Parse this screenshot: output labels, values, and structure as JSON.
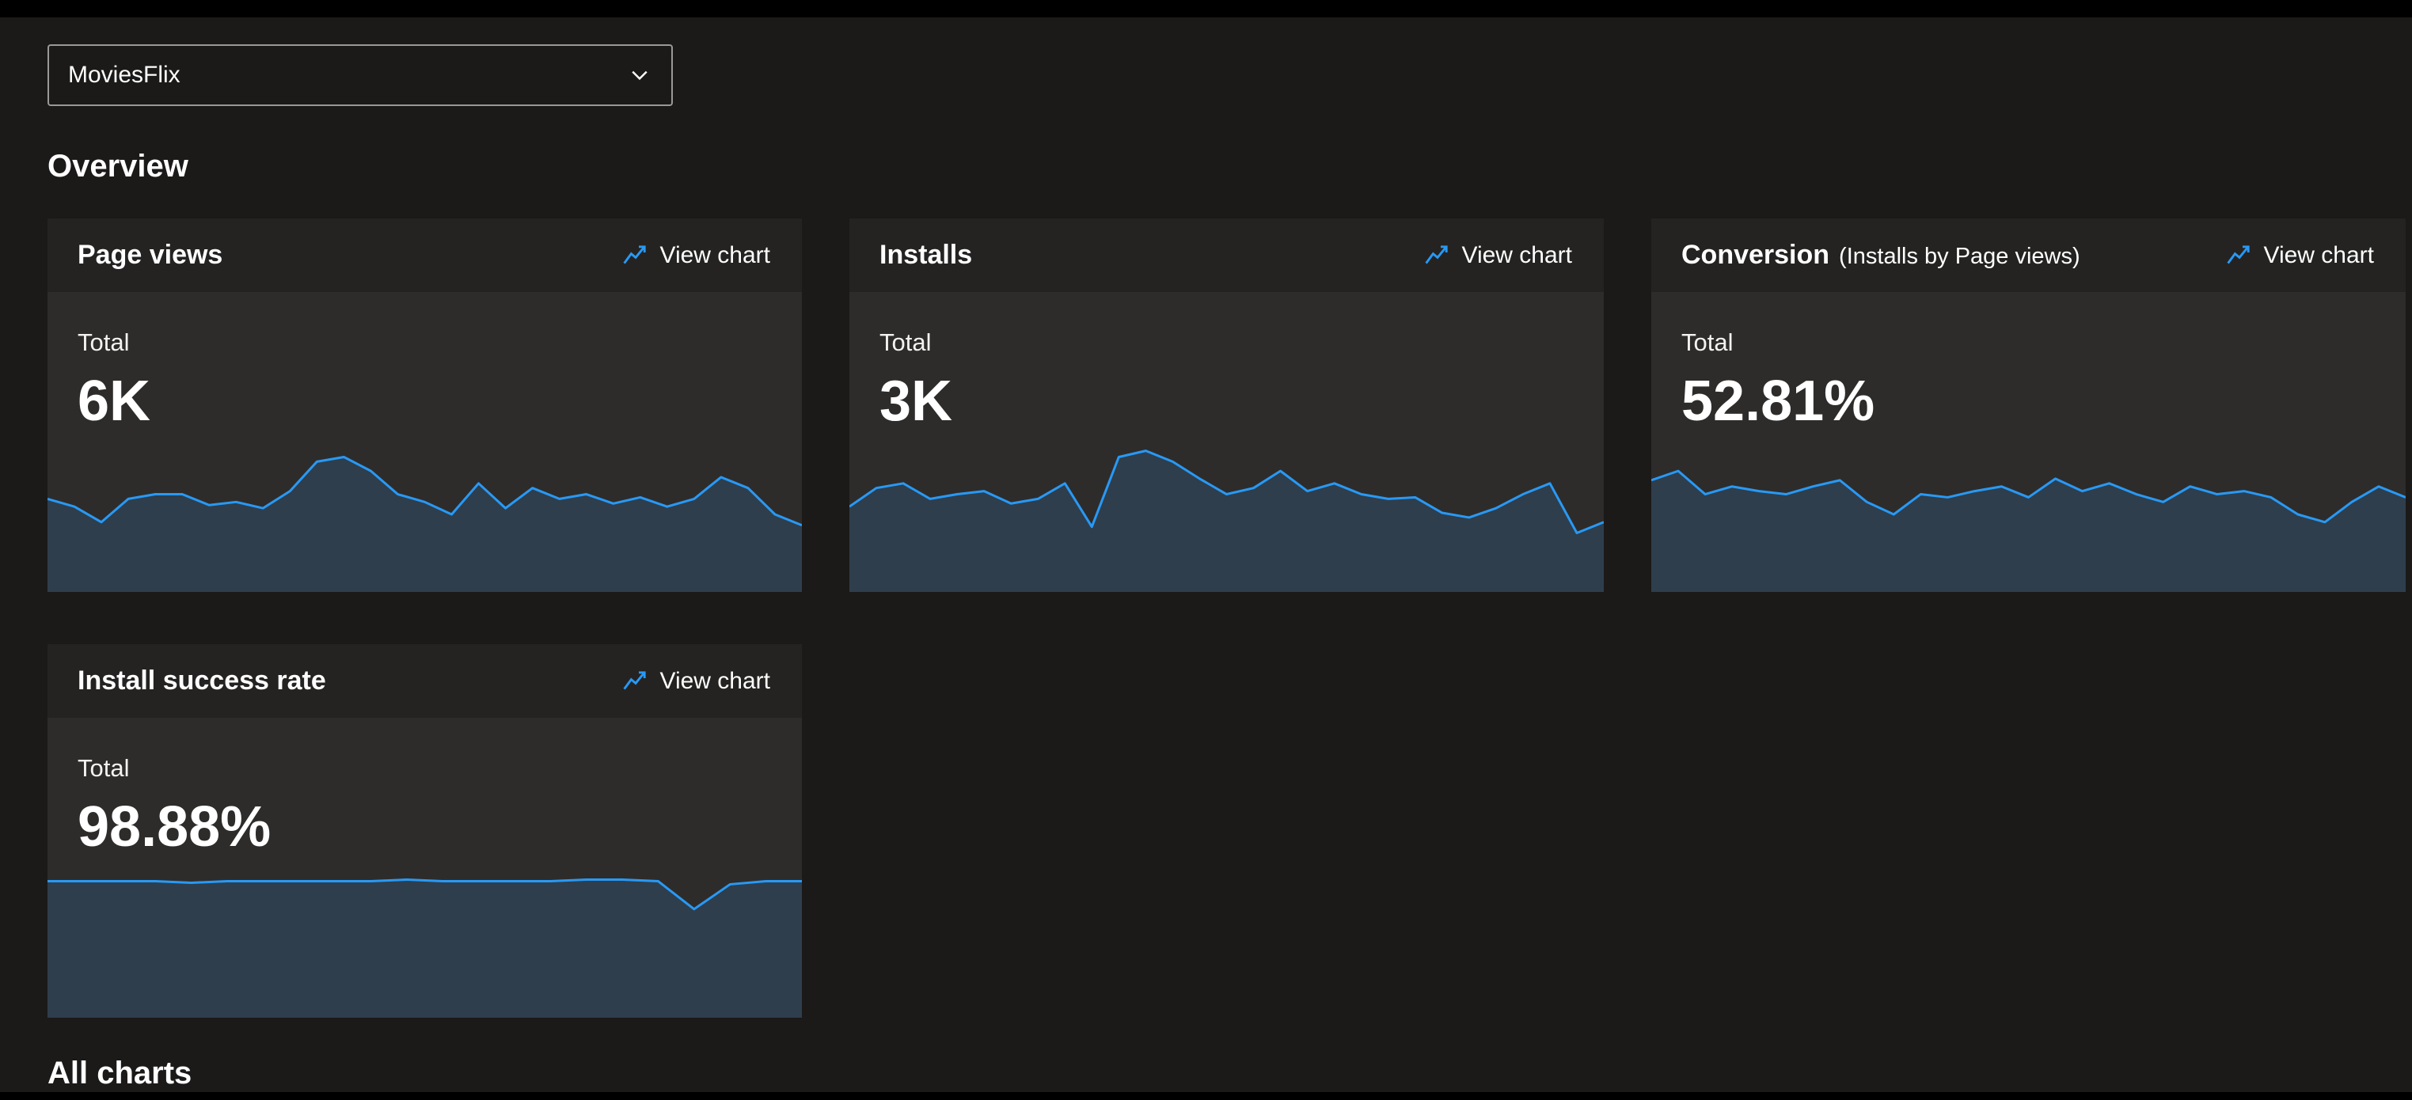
{
  "colors": {
    "background": "#1b1a19",
    "topbar": "#000000",
    "card_body": "#2d2c2b",
    "card_header": "#242322",
    "spark_line": "#2899f5",
    "spark_fill": "#2f3e4c",
    "accent": "#2899f5",
    "text": "#ffffff"
  },
  "icons": {
    "app_picker": "chevron-down-icon",
    "view_chart": "line-chart-icon"
  },
  "app_picker": {
    "value": "MoviesFlix"
  },
  "sections": {
    "overview": "Overview",
    "all_charts": "All charts"
  },
  "cards": [
    {
      "title": "Page views",
      "subtitle": "",
      "action": "View chart",
      "total_label": "Total",
      "value": "6K"
    },
    {
      "title": "Installs",
      "subtitle": "",
      "action": "View chart",
      "total_label": "Total",
      "value": "3K"
    },
    {
      "title": "Conversion",
      "subtitle": "(Installs by Page views)",
      "action": "View chart",
      "total_label": "Total",
      "value": "52.81%"
    },
    {
      "title": "Install success rate",
      "subtitle": "",
      "action": "View chart",
      "total_label": "Total",
      "value": "98.88%"
    }
  ],
  "chart_data": [
    {
      "type": "area",
      "title": "Page views sparkline",
      "total": "6K",
      "y_axis": "relative height 0-100 (unlabeled sparkline)",
      "values": [
        60,
        55,
        45,
        60,
        63,
        63,
        56,
        58,
        54,
        65,
        84,
        87,
        78,
        63,
        58,
        50,
        70,
        54,
        67,
        60,
        63,
        57,
        61,
        55,
        60,
        74,
        67,
        50,
        43
      ]
    },
    {
      "type": "area",
      "title": "Installs sparkline",
      "total": "3K",
      "y_axis": "relative height 0-100 (unlabeled sparkline)",
      "values": [
        55,
        67,
        70,
        60,
        63,
        65,
        57,
        60,
        70,
        42,
        87,
        91,
        84,
        73,
        63,
        67,
        78,
        65,
        70,
        63,
        60,
        61,
        51,
        48,
        54,
        63,
        70,
        38,
        45
      ]
    },
    {
      "type": "area",
      "title": "Conversion sparkline",
      "total": "52.81%",
      "y_axis": "relative height 0-100 (unlabeled sparkline)",
      "values": [
        72,
        78,
        63,
        68,
        65,
        63,
        68,
        72,
        58,
        50,
        63,
        61,
        65,
        68,
        61,
        73,
        65,
        70,
        63,
        58,
        68,
        63,
        65,
        61,
        50,
        45,
        58,
        68,
        61
      ]
    },
    {
      "type": "area",
      "title": "Install success rate sparkline",
      "total": "98.88%",
      "y_axis": "relative height 0-100 (unlabeled sparkline)",
      "values": [
        88,
        88,
        88,
        88,
        87,
        88,
        88,
        88,
        88,
        88,
        89,
        88,
        88,
        88,
        88,
        89,
        89,
        88,
        70,
        86,
        88,
        88
      ]
    }
  ]
}
